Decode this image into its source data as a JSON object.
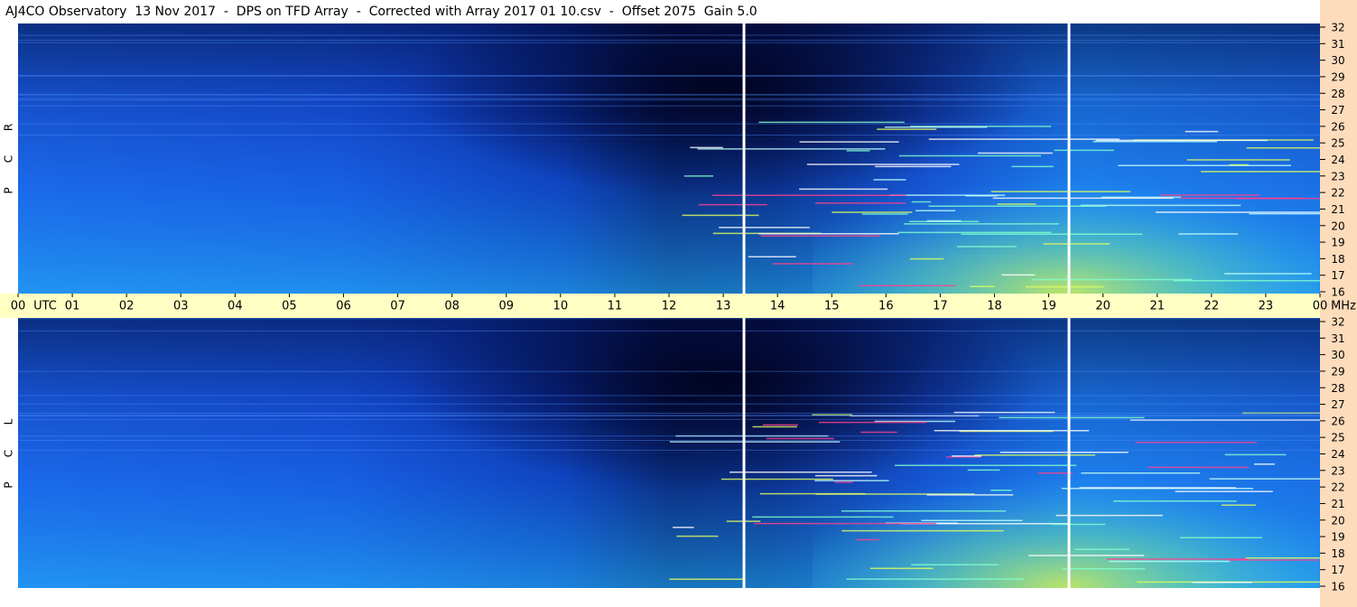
{
  "header": {
    "title": "AJ4CO Observatory  13 Nov 2017  -  DPS on TFD Array  -  Corrected with Array 2017 01 10.csv  -  Offset 2075  Gain 5.0"
  },
  "panels": [
    {
      "label": [
        "R",
        "C",
        "P"
      ]
    },
    {
      "label": [
        "L",
        "C",
        "P"
      ]
    }
  ],
  "freq_ticks": [
    16,
    17,
    18,
    19,
    20,
    21,
    22,
    23,
    24,
    25,
    26,
    27,
    28,
    29,
    30,
    31,
    32
  ],
  "freq_unit": "MHz",
  "time_ticks": [
    "00",
    "01",
    "02",
    "03",
    "04",
    "05",
    "06",
    "07",
    "08",
    "09",
    "10",
    "11",
    "12",
    "13",
    "14",
    "15",
    "16",
    "17",
    "18",
    "19",
    "20",
    "21",
    "22",
    "23",
    "00"
  ],
  "time_unit": "UTC"
}
